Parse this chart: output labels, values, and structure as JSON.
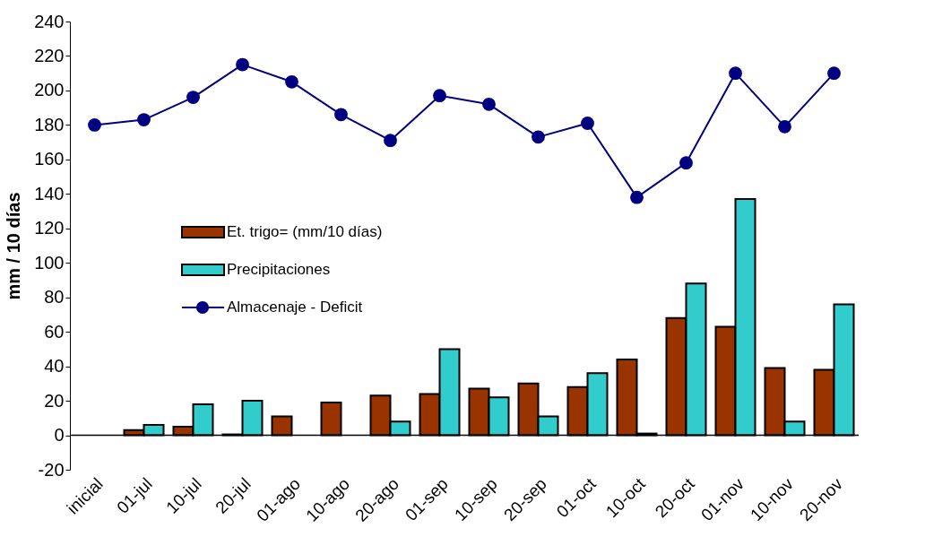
{
  "chart_data": {
    "type": "bar",
    "ylabel": "mm / 10 días",
    "categories": [
      "inicial",
      "01-jul",
      "10-jul",
      "20-jul",
      "01-ago",
      "10-ago",
      "20-ago",
      "01-sep",
      "10-sep",
      "20-sep",
      "01-oct",
      "10-oct",
      "20-oct",
      "01-nov",
      "10-nov",
      "20-nov"
    ],
    "series": [
      {
        "name": "Et. trigo= (mm/10 días)",
        "color": "#993300",
        "values": [
          null,
          3,
          5,
          0.5,
          11,
          19,
          23,
          24,
          27,
          30,
          28,
          44,
          68,
          63,
          39,
          38
        ]
      },
      {
        "name": "Precipitaciones",
        "color": "#33cccc",
        "values": [
          null,
          6,
          18,
          20,
          null,
          null,
          8,
          50,
          22,
          11,
          36,
          1,
          88,
          137,
          8,
          76
        ]
      },
      {
        "name": "Almacenaje - Deficit",
        "color": "#000080",
        "type": "line",
        "marker": "circle",
        "values": [
          180,
          183,
          196,
          215,
          205,
          186,
          171,
          197,
          192,
          173,
          181,
          138,
          158,
          210,
          179,
          210
        ]
      }
    ],
    "ylim": [
      -20,
      240
    ],
    "yticks": [
      -20,
      0,
      20,
      40,
      60,
      80,
      100,
      120,
      140,
      160,
      180,
      200,
      220,
      240
    ],
    "grid": false,
    "legend": "left"
  }
}
